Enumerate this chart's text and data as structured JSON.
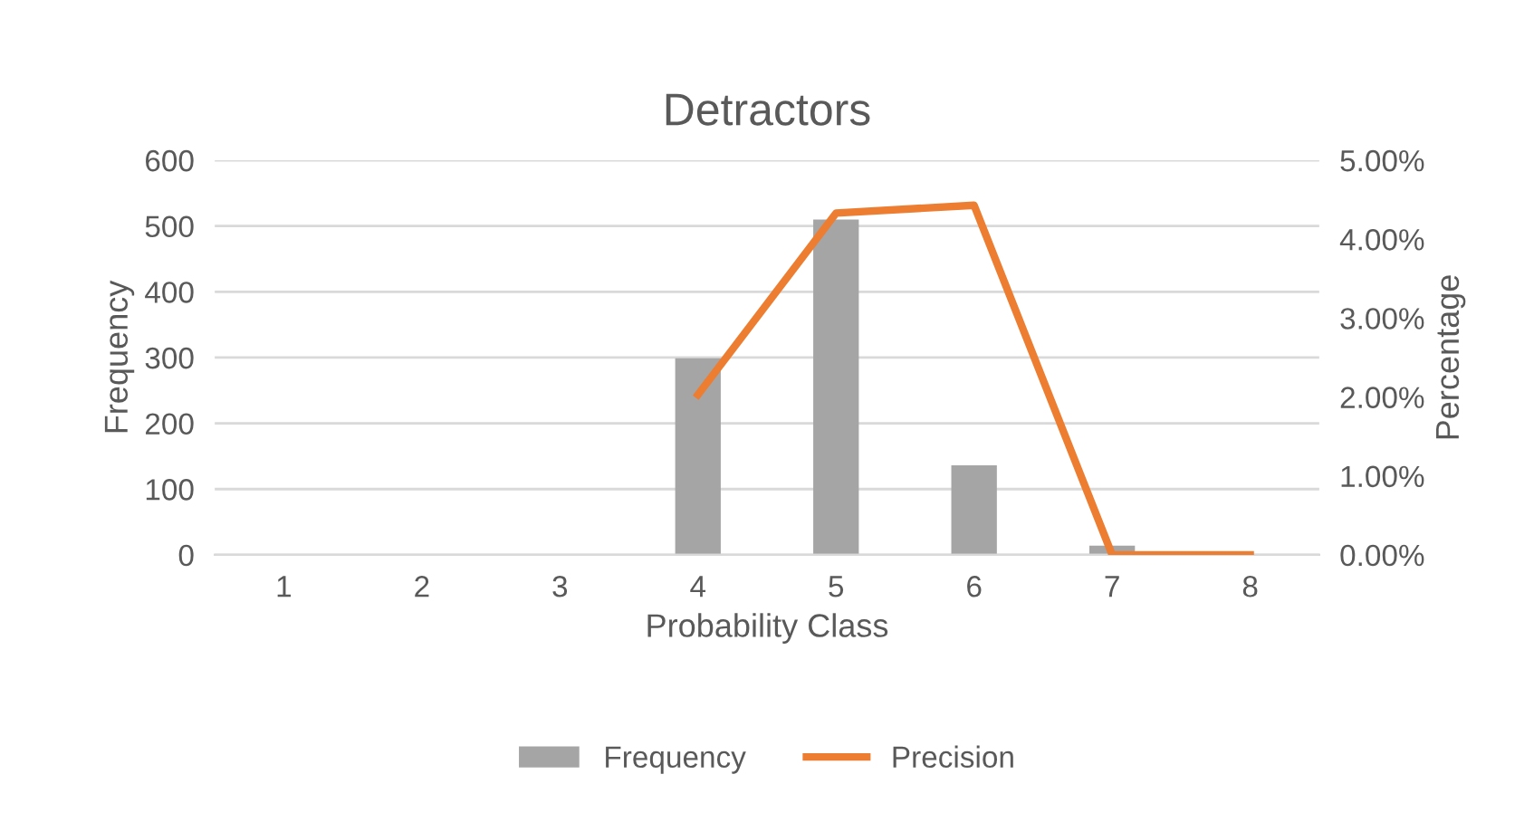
{
  "chart_data": {
    "type": "bar",
    "title": "Detractors",
    "xlabel": "Probability Class",
    "ylabel": "Frequency",
    "y2label": "Percentage",
    "categories": [
      "1",
      "2",
      "3",
      "4",
      "5",
      "6",
      "7",
      "8"
    ],
    "series": [
      {
        "name": "Frequency",
        "color": "#a5a5a5",
        "values": [
          0,
          0,
          0,
          299,
          510,
          136,
          14,
          0
        ]
      },
      {
        "name": "Precision",
        "type": "line",
        "color": "#ed7d31",
        "axis": "y2",
        "values": [
          null,
          null,
          null,
          2.03,
          4.33,
          4.43,
          0,
          0
        ]
      }
    ],
    "ylim": [
      0,
      600
    ],
    "yticks": [
      0,
      100,
      200,
      300,
      400,
      500,
      600
    ],
    "y2lim": [
      0,
      5
    ],
    "y2ticks": [
      {
        "value": 0,
        "label": "0.00%"
      },
      {
        "value": 1,
        "label": "1.00%"
      },
      {
        "value": 2,
        "label": "2.00%"
      },
      {
        "value": 3,
        "label": "3.00%"
      },
      {
        "value": 4,
        "label": "4.00%"
      },
      {
        "value": 5,
        "label": "5.00%"
      }
    ],
    "grid": "y",
    "legend": "bottom",
    "marker": "none",
    "line_style": "solid"
  }
}
